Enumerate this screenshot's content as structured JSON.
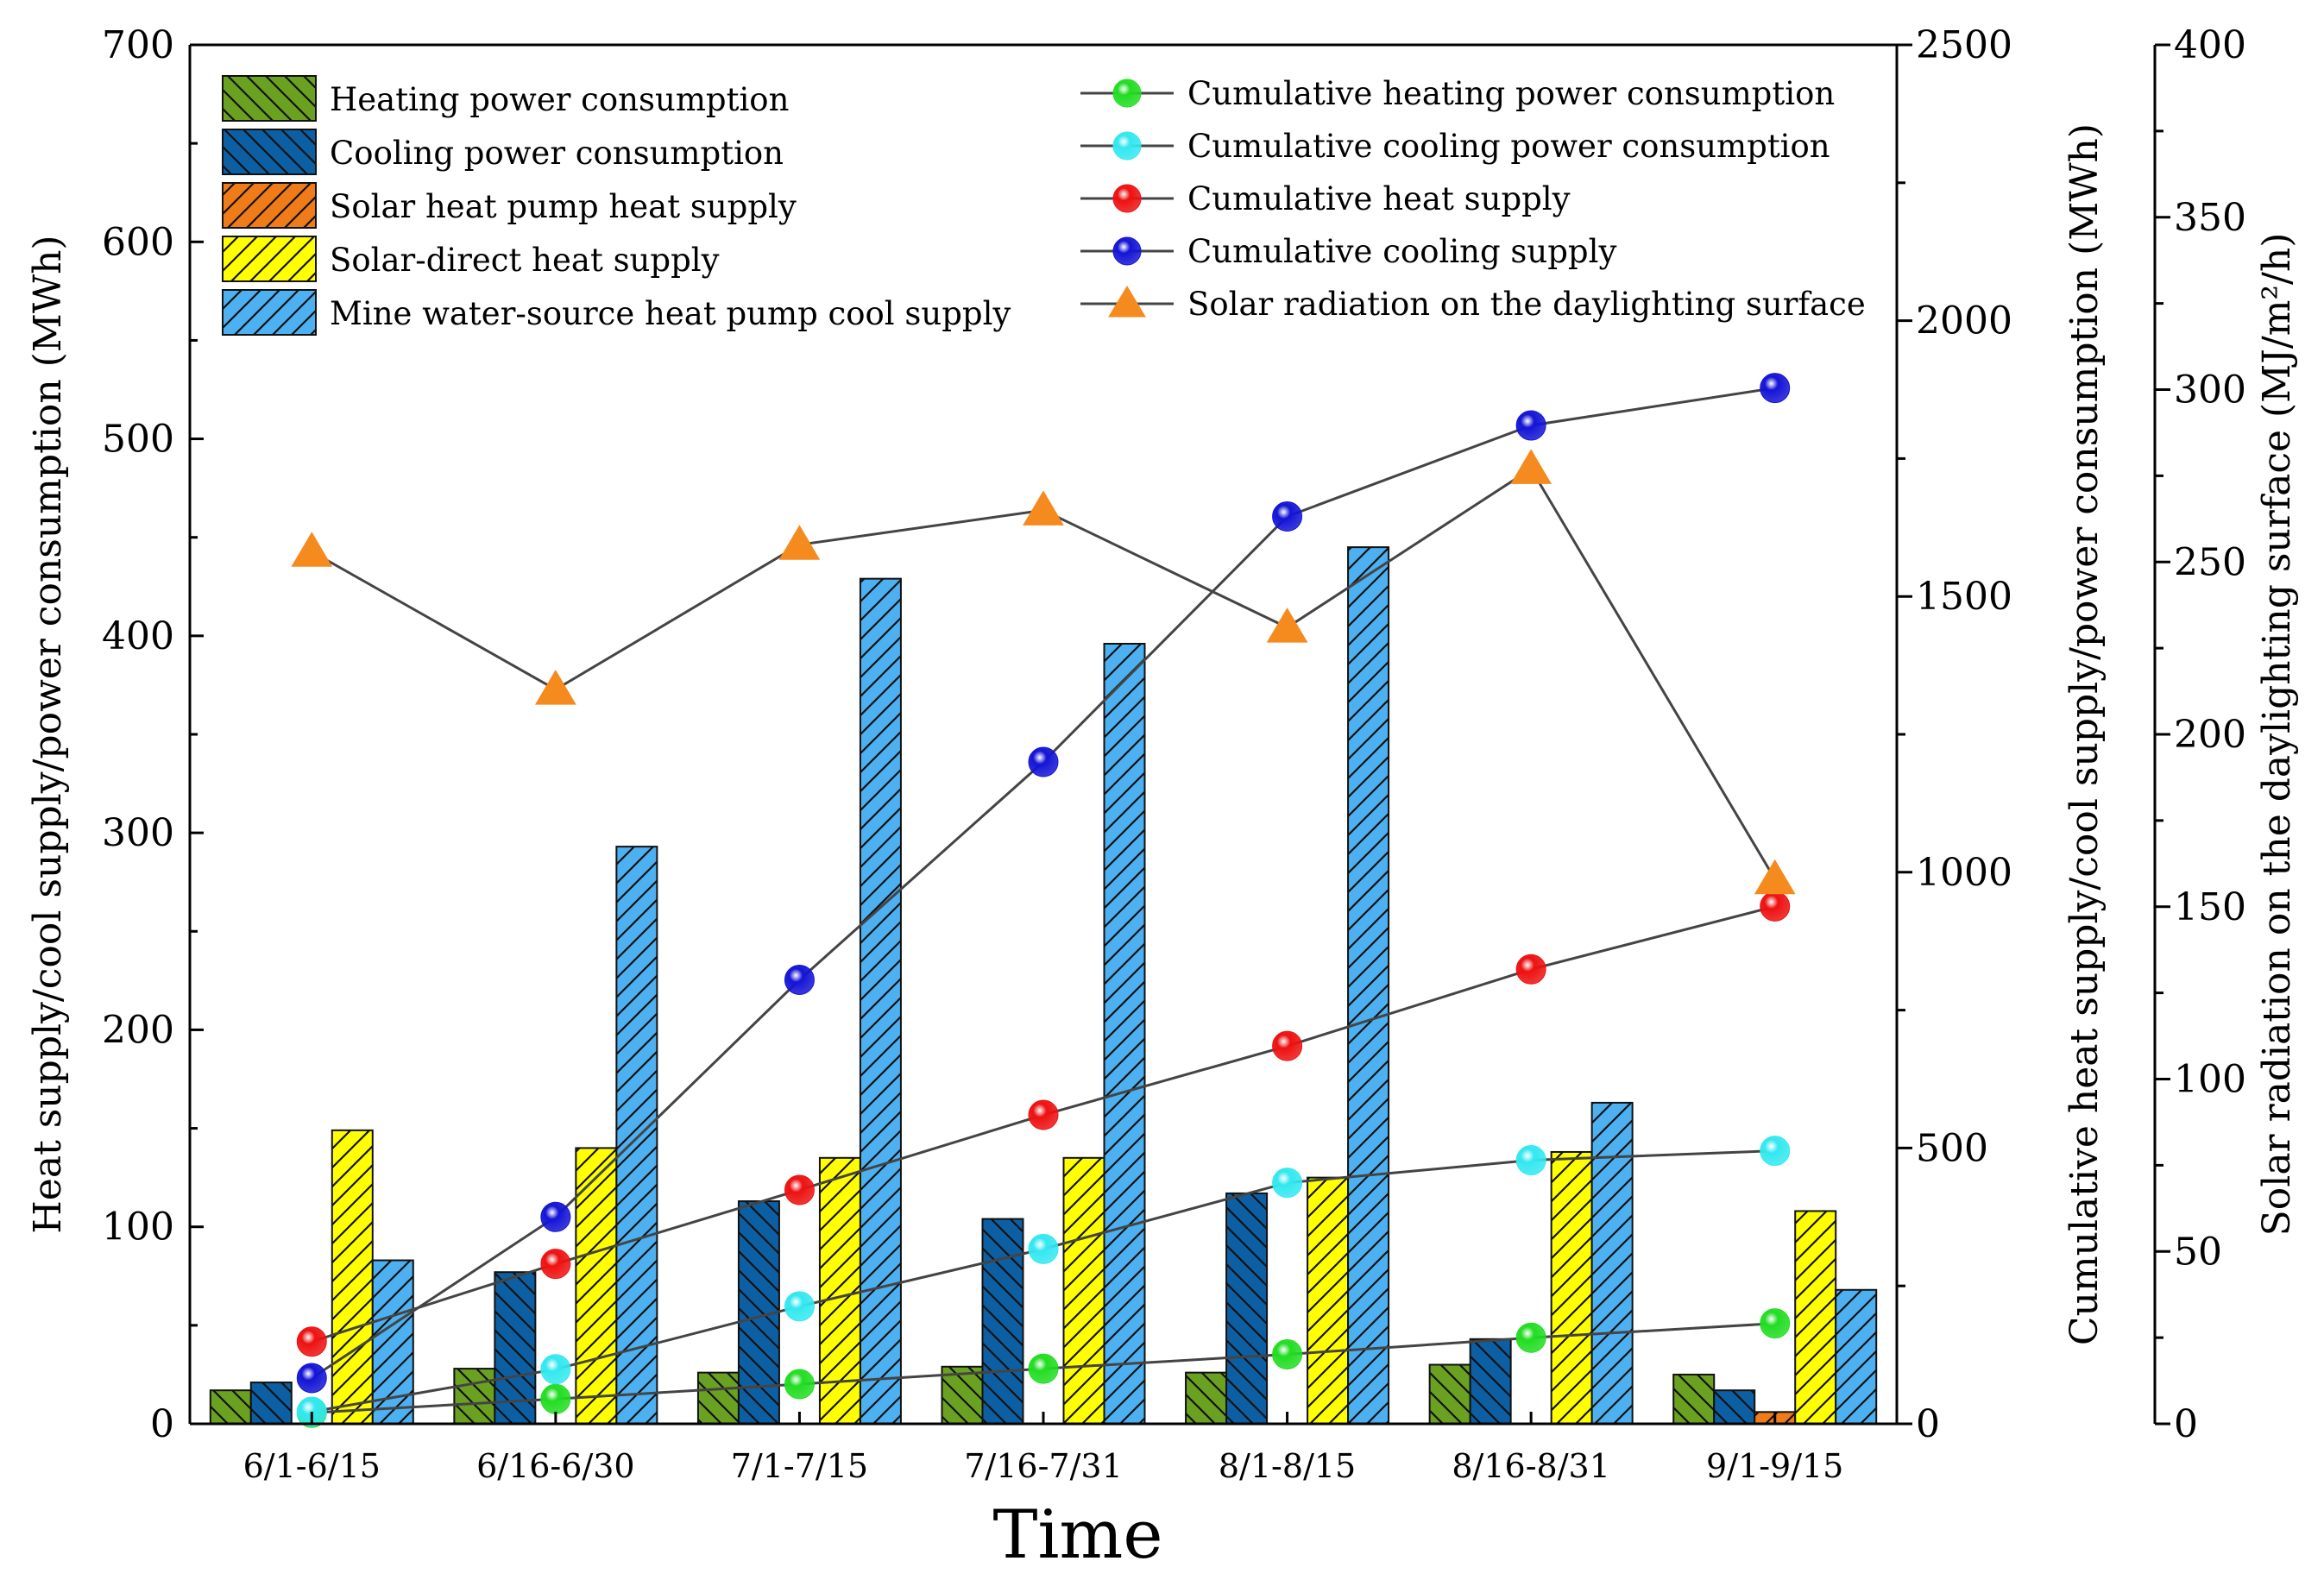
{
  "chart_data": {
    "type": "bar",
    "xlabel": "Time",
    "ylabel_left": "Heat supply/cool supply/power consumption (MWh)",
    "ylabel_right1": "Cumulative heat supply/cool supply/power consumption (MWh)",
    "ylabel_right2": "Solar radiation on the daylighting surface (MJ/m²/h)",
    "categories": [
      "6/1-6/15",
      "6/16-6/30",
      "7/1-7/15",
      "7/16-7/31",
      "8/1-8/15",
      "8/16-8/31",
      "9/1-9/15"
    ],
    "ylim_left": [
      0,
      700
    ],
    "yticks_left": [
      "0",
      "100",
      "200",
      "300",
      "400",
      "500",
      "600",
      "700"
    ],
    "ylim_right1": [
      0,
      2500
    ],
    "yticks_right1": [
      "0",
      "500",
      "1000",
      "1500",
      "2000",
      "2500"
    ],
    "ylim_right2": [
      0,
      400
    ],
    "yticks_right2": [
      "0",
      "50",
      "100",
      "150",
      "200",
      "250",
      "300",
      "350",
      "400"
    ],
    "bar_series": [
      {
        "name": "Heating power consumption",
        "color": "#6aa121",
        "hatch": "back",
        "values": [
          17,
          28,
          26,
          29,
          26,
          30,
          25
        ]
      },
      {
        "name": "Cooling power consumption",
        "color": "#0d5fa3",
        "hatch": "back",
        "values": [
          21,
          77,
          113,
          104,
          117,
          43,
          17
        ]
      },
      {
        "name": "Solar heat pump heat supply",
        "color": "#f07b19",
        "hatch": "fwd",
        "values": [
          0,
          0,
          0,
          0,
          0,
          0,
          6
        ]
      },
      {
        "name": "Solar-direct heat supply",
        "color": "#ffff00",
        "hatch": "fwd",
        "values": [
          149,
          140,
          135,
          135,
          125,
          138,
          108
        ]
      },
      {
        "name": "Mine water-source heat pump cool supply",
        "color": "#4db0f0",
        "hatch": "fwd",
        "values": [
          83,
          293,
          429,
          396,
          445,
          163,
          68
        ]
      }
    ],
    "line_series": [
      {
        "name": "Cumulative heating power consumption",
        "marker": "sphere",
        "color": "#22dd22",
        "axis": "right1",
        "values": [
          20,
          45,
          72,
          100,
          126,
          156,
          182
        ]
      },
      {
        "name": "Cumulative cooling power consumption",
        "marker": "sphere",
        "color": "#33e8f0",
        "axis": "right1",
        "values": [
          22,
          99,
          213,
          317,
          437,
          478,
          495
        ]
      },
      {
        "name": "Cumulative heat supply",
        "marker": "sphere",
        "color": "#ee1111",
        "axis": "right1",
        "values": [
          149,
          290,
          424,
          560,
          685,
          824,
          938
        ]
      },
      {
        "name": "Cumulative cooling supply",
        "marker": "sphere",
        "color": "#1414d6",
        "axis": "right1",
        "values": [
          83,
          375,
          805,
          1200,
          1645,
          1810,
          1878
        ]
      },
      {
        "name": "Solar radiation on the daylighting surface",
        "marker": "triangle",
        "color": "#f58a1f",
        "axis": "right2",
        "values": [
          253,
          213,
          255,
          265,
          231,
          277,
          158
        ]
      }
    ]
  }
}
